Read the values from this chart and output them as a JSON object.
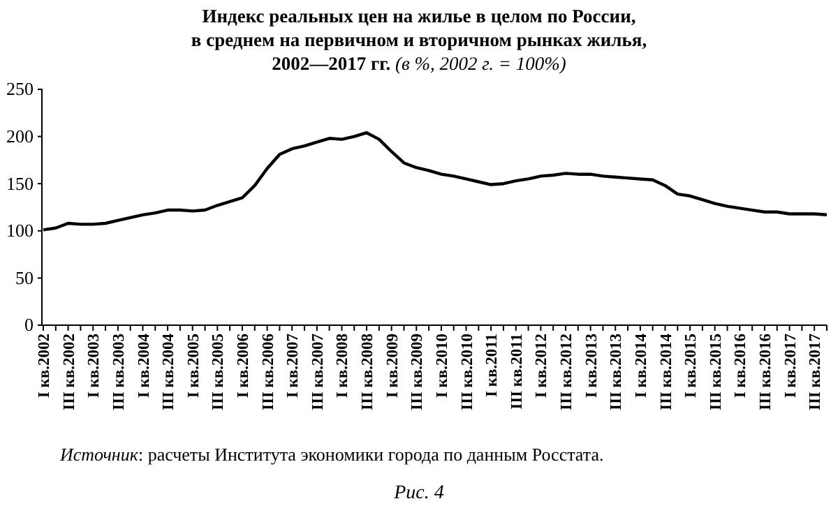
{
  "chart_data": {
    "type": "line",
    "title": "Индекс реальных цен на жилье в целом по России,\nв среднем на первичном и вторичном рынках жилья,\n2002—2017 гг.",
    "subtitle": "(в %, 2002 г. = 100%)",
    "categories": [
      "I кв.2002",
      null,
      "III кв.2002",
      null,
      "I кв.2003",
      null,
      "III кв.2003",
      null,
      "I кв.2004",
      null,
      "III кв.2004",
      null,
      "I кв.2005",
      null,
      "III кв.2005",
      null,
      "I кв.2006",
      null,
      "III кв.2006",
      null,
      "I кв.2007",
      null,
      "III кв.2007",
      null,
      "I кв.2008",
      null,
      "III кв.2008",
      null,
      "I кв.2009",
      null,
      "III кв.2009",
      null,
      "I кв.2010",
      null,
      "III кв.2010",
      null,
      "I кв.2011",
      null,
      "III кв.2011",
      null,
      "I кв.2012",
      null,
      "III кв.2012",
      null,
      "I кв.2013",
      null,
      "III кв.2013",
      null,
      "I кв.2014",
      null,
      "III кв.2014",
      null,
      "I кв.2015",
      null,
      "III кв.2015",
      null,
      "I кв.2016",
      null,
      "III кв.2016",
      null,
      "I кв.2017",
      null,
      "III кв.2017",
      null
    ],
    "series": [
      {
        "color": "#000000",
        "values": [
          101,
          103,
          108,
          107,
          107,
          108,
          111,
          114,
          117,
          119,
          122,
          122,
          121,
          122,
          127,
          131,
          135,
          148,
          166,
          181,
          187,
          190,
          194,
          198,
          197,
          200,
          204,
          197,
          184,
          172,
          167,
          164,
          160,
          158,
          155,
          152,
          149,
          150,
          153,
          155,
          158,
          159,
          161,
          160,
          160,
          158,
          157,
          156,
          155,
          154,
          148,
          139,
          137,
          133,
          129,
          126,
          124,
          122,
          120,
          120,
          118,
          118,
          118,
          117
        ]
      }
    ],
    "ylim": [
      0,
      250
    ],
    "yticks": [
      0,
      50,
      100,
      150,
      200,
      250
    ],
    "grid": false,
    "marker": "none",
    "line_style": "solid",
    "annotations": [
      "Источник: расчеты Института экономики города по данным Росстата.",
      "Рис. 4"
    ]
  }
}
